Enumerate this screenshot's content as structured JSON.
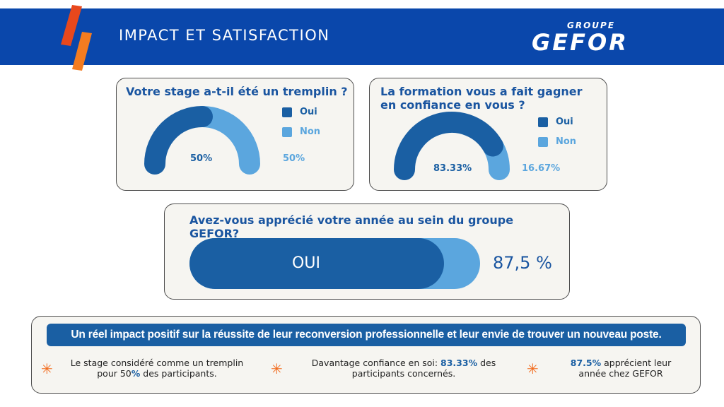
{
  "header": {
    "title": "IMPACT ET SATISFACTION",
    "logo_top": "GROUPE",
    "logo_main": "GEFOR",
    "colors": {
      "bar": "#0a47ab",
      "deco_red": "#e8481c",
      "deco_orange": "#f47c20"
    }
  },
  "colors": {
    "dark_blue": "#1a5fa3",
    "light_blue": "#5ba6de",
    "accent_orange": "#f26b1d"
  },
  "chart_data": [
    {
      "type": "pie",
      "title": "Votre stage a-t-il été un tremplin ?",
      "categories": [
        "Oui",
        "Non"
      ],
      "values": [
        50,
        50
      ],
      "labels": [
        "50%",
        "50%"
      ]
    },
    {
      "type": "pie",
      "title": "La formation vous a fait gagner en confiance en vous ?",
      "categories": [
        "Oui",
        "Non"
      ],
      "values": [
        83.33,
        16.67
      ],
      "labels": [
        "83.33%",
        "16.67%"
      ]
    },
    {
      "type": "bar",
      "title": "Avez-vous apprécié votre année au sein du groupe GEFOR?",
      "categories": [
        "OUI"
      ],
      "values": [
        87.5
      ],
      "value_label": "87,5 %",
      "ylim": [
        0,
        100
      ]
    }
  ],
  "summary": {
    "banner": "Un réel impact positif sur la réussite de leur reconversion professionnelle et leur envie de trouver un nouveau poste.",
    "stat1": {
      "line1": "Le stage considéré comme un tremplin",
      "line2_pre": "pour 50",
      "line2_hl": "%",
      "line2_post": " des participants."
    },
    "stat2": {
      "line1_pre": "Davantage confiance en soi: ",
      "line1_hl": "83.33%",
      "line1_post": " des",
      "line2": "participants concernés."
    },
    "stat3": {
      "line1_hl": "87.5%",
      "line1_post": " apprécient leur",
      "line2": "année chez GEFOR"
    }
  }
}
